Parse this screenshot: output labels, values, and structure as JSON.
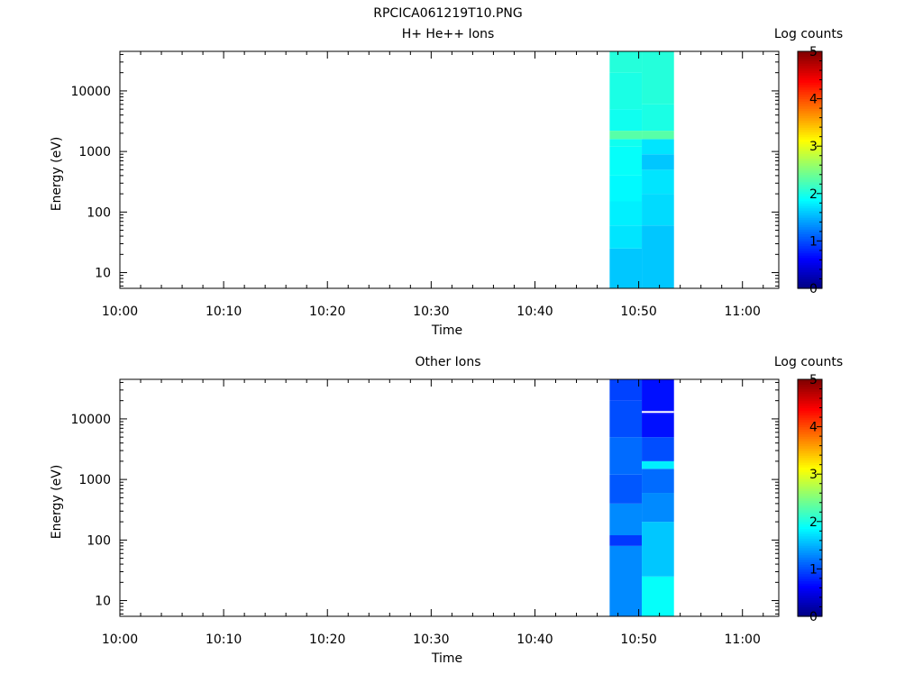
{
  "figure_title": "RPCICA061219T10.PNG",
  "chart_data": [
    {
      "type": "heatmap",
      "title": "H+ He++ Ions",
      "xlabel": "Time",
      "ylabel": "Energy (eV)",
      "x_ticks": [
        "10:00",
        "10:10",
        "10:20",
        "10:30",
        "10:40",
        "10:50",
        "11:00"
      ],
      "x_range_minutes": [
        0,
        63.5
      ],
      "y_scale": "log",
      "y_ticks": [
        "10",
        "100",
        "1000",
        "10000"
      ],
      "y_range": [
        5.5,
        45000
      ],
      "colorbar": {
        "label": "Log counts",
        "range": [
          0,
          5
        ],
        "ticks": [
          "0",
          "1",
          "2",
          "3",
          "4",
          "5"
        ]
      },
      "columns": [
        {
          "x_start": 47.2,
          "x_end": 50.3,
          "bins": [
            {
              "e_low": 5.5,
              "e_high": 25,
              "value": 1.6
            },
            {
              "e_low": 25,
              "e_high": 60,
              "value": 1.75
            },
            {
              "e_low": 60,
              "e_high": 150,
              "value": 1.8
            },
            {
              "e_low": 150,
              "e_high": 400,
              "value": 1.85
            },
            {
              "e_low": 400,
              "e_high": 1200,
              "value": 1.9
            },
            {
              "e_low": 1200,
              "e_high": 1600,
              "value": 1.95
            },
            {
              "e_low": 1600,
              "e_high": 2200,
              "value": 2.3
            },
            {
              "e_low": 2200,
              "e_high": 5000,
              "value": 1.95
            },
            {
              "e_low": 5000,
              "e_high": 20000,
              "value": 2.0
            },
            {
              "e_low": 20000,
              "e_high": 45000,
              "value": 2.05
            }
          ]
        },
        {
          "x_start": 50.3,
          "x_end": 53.4,
          "bins": [
            {
              "e_low": 5.5,
              "e_high": 60,
              "value": 1.6
            },
            {
              "e_low": 60,
              "e_high": 200,
              "value": 1.7
            },
            {
              "e_low": 200,
              "e_high": 500,
              "value": 1.75
            },
            {
              "e_low": 500,
              "e_high": 900,
              "value": 1.6
            },
            {
              "e_low": 900,
              "e_high": 1600,
              "value": 1.75
            },
            {
              "e_low": 1600,
              "e_high": 2200,
              "value": 2.3
            },
            {
              "e_low": 2200,
              "e_high": 6000,
              "value": 2.0
            },
            {
              "e_low": 6000,
              "e_high": 45000,
              "value": 2.05
            }
          ]
        }
      ]
    },
    {
      "type": "heatmap",
      "title": "Other Ions",
      "xlabel": "Time",
      "ylabel": "Energy (eV)",
      "x_ticks": [
        "10:00",
        "10:10",
        "10:20",
        "10:30",
        "10:40",
        "10:50",
        "11:00"
      ],
      "x_range_minutes": [
        0,
        63.5
      ],
      "y_scale": "log",
      "y_ticks": [
        "10",
        "100",
        "1000",
        "10000"
      ],
      "y_range": [
        5.5,
        45000
      ],
      "colorbar": {
        "label": "Log counts",
        "range": [
          0,
          5
        ],
        "ticks": [
          "0",
          "1",
          "2",
          "3",
          "4",
          "5"
        ]
      },
      "columns": [
        {
          "x_start": 47.2,
          "x_end": 50.3,
          "bins": [
            {
              "e_low": 5.5,
              "e_high": 80,
              "value": 1.3
            },
            {
              "e_low": 80,
              "e_high": 120,
              "value": 0.9
            },
            {
              "e_low": 120,
              "e_high": 400,
              "value": 1.3
            },
            {
              "e_low": 400,
              "e_high": 1200,
              "value": 1.05
            },
            {
              "e_low": 1200,
              "e_high": 5000,
              "value": 1.15
            },
            {
              "e_low": 5000,
              "e_high": 20000,
              "value": 1.0
            },
            {
              "e_low": 20000,
              "e_high": 45000,
              "value": 0.95
            }
          ]
        },
        {
          "x_start": 50.3,
          "x_end": 53.4,
          "bins": [
            {
              "e_low": 5.5,
              "e_high": 25,
              "value": 1.9
            },
            {
              "e_low": 25,
              "e_high": 200,
              "value": 1.6
            },
            {
              "e_low": 200,
              "e_high": 600,
              "value": 1.3
            },
            {
              "e_low": 600,
              "e_high": 1500,
              "value": 1.15
            },
            {
              "e_low": 1500,
              "e_high": 2000,
              "value": 1.8
            },
            {
              "e_low": 2000,
              "e_high": 5000,
              "value": 1.0
            },
            {
              "e_low": 5000,
              "e_high": 12000,
              "value": 0.7
            },
            {
              "e_low": 12000,
              "e_high": 14000,
              "value": 0.65
            },
            {
              "e_low": 14000,
              "e_high": 45000,
              "value": 0.7
            }
          ],
          "fill_value_energy": 13000
        }
      ]
    }
  ]
}
